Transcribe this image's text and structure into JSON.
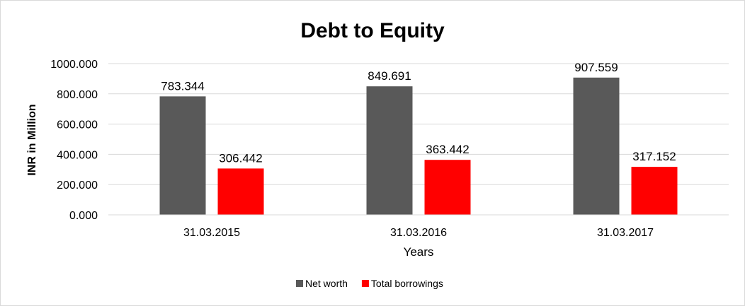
{
  "chart_data": {
    "type": "bar",
    "title": "Debt to Equity",
    "xlabel": "Years",
    "ylabel": "INR in Million",
    "categories": [
      "31.03.2015",
      "31.03.2016",
      "31.03.2017"
    ],
    "series": [
      {
        "name": "Net worth",
        "values": [
          783.344,
          849.691,
          907.559
        ],
        "labels": [
          "783.344",
          "849.691",
          "907.559"
        ],
        "color": "#595959"
      },
      {
        "name": "Total borrowings",
        "values": [
          306.442,
          363.442,
          317.152
        ],
        "labels": [
          "306.442",
          "363.442",
          "317.152"
        ],
        "color": "#ff0000"
      }
    ],
    "ylim": [
      0,
      1000
    ],
    "yticks": [
      0,
      200,
      400,
      600,
      800,
      1000
    ],
    "ytick_labels": [
      "0.000",
      "200.000",
      "400.000",
      "600.000",
      "800.000",
      "1000.000"
    ],
    "grid": true,
    "legend": "bottom"
  }
}
